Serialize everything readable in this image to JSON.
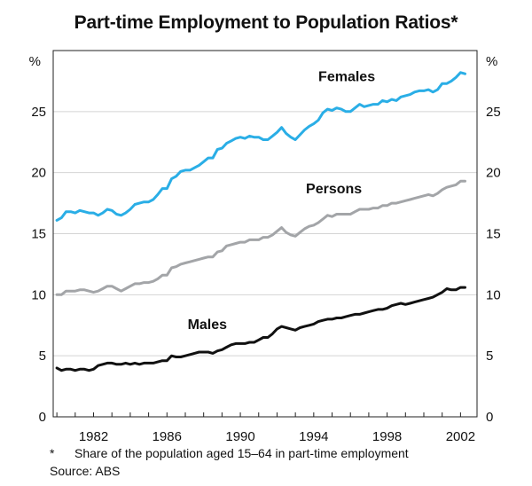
{
  "chart_data": {
    "type": "line",
    "title": "Part-time Employment to Population Ratios*",
    "yunit_left": "%",
    "yunit_right": "%",
    "ylim": [
      0,
      30
    ],
    "yticks": [
      0,
      5,
      10,
      15,
      20,
      25
    ],
    "xlim": [
      1979.8,
      2002.9
    ],
    "xticks": [
      1982,
      1986,
      1990,
      1994,
      1998,
      2002
    ],
    "grid": true,
    "colors": {
      "Females": "#2aaee6",
      "Persons": "#a3a5a8",
      "Males": "#111111"
    },
    "series": [
      {
        "name": "Females",
        "x": [
          1980.0,
          1980.25,
          1980.5,
          1980.75,
          1981.0,
          1981.25,
          1981.5,
          1981.75,
          1982.0,
          1982.25,
          1982.5,
          1982.75,
          1983.0,
          1983.25,
          1983.5,
          1983.75,
          1984.0,
          1984.25,
          1984.5,
          1984.75,
          1985.0,
          1985.25,
          1985.5,
          1985.75,
          1986.0,
          1986.25,
          1986.5,
          1986.75,
          1987.0,
          1987.25,
          1987.5,
          1987.75,
          1988.0,
          1988.25,
          1988.5,
          1988.75,
          1989.0,
          1989.25,
          1989.5,
          1989.75,
          1990.0,
          1990.25,
          1990.5,
          1990.75,
          1991.0,
          1991.25,
          1991.5,
          1991.75,
          1992.0,
          1992.25,
          1992.5,
          1992.75,
          1993.0,
          1993.25,
          1993.5,
          1993.75,
          1994.0,
          1994.25,
          1994.5,
          1994.75,
          1995.0,
          1995.25,
          1995.5,
          1995.75,
          1996.0,
          1996.25,
          1996.5,
          1996.75,
          1997.0,
          1997.25,
          1997.5,
          1997.75,
          1998.0,
          1998.25,
          1998.5,
          1998.75,
          1999.0,
          1999.25,
          1999.5,
          1999.75,
          2000.0,
          2000.25,
          2000.5,
          2000.75,
          2001.0,
          2001.25,
          2001.5,
          2001.75,
          2002.0,
          2002.25
        ],
        "values": [
          16.1,
          16.3,
          16.8,
          16.8,
          16.7,
          16.9,
          16.8,
          16.7,
          16.7,
          16.5,
          16.7,
          17.0,
          16.9,
          16.6,
          16.5,
          16.7,
          17.0,
          17.4,
          17.5,
          17.6,
          17.6,
          17.8,
          18.2,
          18.7,
          18.7,
          19.5,
          19.7,
          20.1,
          20.2,
          20.2,
          20.4,
          20.6,
          20.9,
          21.2,
          21.2,
          21.9,
          22.0,
          22.4,
          22.6,
          22.8,
          22.9,
          22.8,
          23.0,
          22.9,
          22.9,
          22.7,
          22.7,
          23.0,
          23.3,
          23.7,
          23.2,
          22.9,
          22.7,
          23.1,
          23.5,
          23.8,
          24.0,
          24.3,
          24.9,
          25.2,
          25.1,
          25.3,
          25.2,
          25.0,
          25.0,
          25.3,
          25.6,
          25.4,
          25.5,
          25.6,
          25.6,
          25.9,
          25.8,
          26.0,
          25.9,
          26.2,
          26.3,
          26.4,
          26.6,
          26.7,
          26.7,
          26.8,
          26.6,
          26.8,
          27.3,
          27.3,
          27.5,
          27.8,
          28.2,
          28.1
        ]
      },
      {
        "name": "Persons",
        "x": [
          1980.0,
          1980.25,
          1980.5,
          1980.75,
          1981.0,
          1981.25,
          1981.5,
          1981.75,
          1982.0,
          1982.25,
          1982.5,
          1982.75,
          1983.0,
          1983.25,
          1983.5,
          1983.75,
          1984.0,
          1984.25,
          1984.5,
          1984.75,
          1985.0,
          1985.25,
          1985.5,
          1985.75,
          1986.0,
          1986.25,
          1986.5,
          1986.75,
          1987.0,
          1987.25,
          1987.5,
          1987.75,
          1988.0,
          1988.25,
          1988.5,
          1988.75,
          1989.0,
          1989.25,
          1989.5,
          1989.75,
          1990.0,
          1990.25,
          1990.5,
          1990.75,
          1991.0,
          1991.25,
          1991.5,
          1991.75,
          1992.0,
          1992.25,
          1992.5,
          1992.75,
          1993.0,
          1993.25,
          1993.5,
          1993.75,
          1994.0,
          1994.25,
          1994.5,
          1994.75,
          1995.0,
          1995.25,
          1995.5,
          1995.75,
          1996.0,
          1996.25,
          1996.5,
          1996.75,
          1997.0,
          1997.25,
          1997.5,
          1997.75,
          1998.0,
          1998.25,
          1998.5,
          1998.75,
          1999.0,
          1999.25,
          1999.5,
          1999.75,
          2000.0,
          2000.25,
          2000.5,
          2000.75,
          2001.0,
          2001.25,
          2001.5,
          2001.75,
          2002.0,
          2002.25
        ],
        "values": [
          10.0,
          10.0,
          10.3,
          10.3,
          10.3,
          10.4,
          10.4,
          10.3,
          10.2,
          10.3,
          10.5,
          10.7,
          10.7,
          10.5,
          10.3,
          10.5,
          10.7,
          10.9,
          10.9,
          11.0,
          11.0,
          11.1,
          11.3,
          11.6,
          11.6,
          12.2,
          12.3,
          12.5,
          12.6,
          12.7,
          12.8,
          12.9,
          13.0,
          13.1,
          13.1,
          13.5,
          13.6,
          14.0,
          14.1,
          14.2,
          14.3,
          14.3,
          14.5,
          14.5,
          14.5,
          14.7,
          14.7,
          14.9,
          15.2,
          15.5,
          15.1,
          14.9,
          14.8,
          15.1,
          15.4,
          15.6,
          15.7,
          15.9,
          16.2,
          16.5,
          16.4,
          16.6,
          16.6,
          16.6,
          16.6,
          16.8,
          17.0,
          17.0,
          17.0,
          17.1,
          17.1,
          17.3,
          17.3,
          17.5,
          17.5,
          17.6,
          17.7,
          17.8,
          17.9,
          18.0,
          18.1,
          18.2,
          18.1,
          18.3,
          18.6,
          18.8,
          18.9,
          19.0,
          19.3,
          19.3
        ]
      },
      {
        "name": "Males",
        "x": [
          1980.0,
          1980.25,
          1980.5,
          1980.75,
          1981.0,
          1981.25,
          1981.5,
          1981.75,
          1982.0,
          1982.25,
          1982.5,
          1982.75,
          1983.0,
          1983.25,
          1983.5,
          1983.75,
          1984.0,
          1984.25,
          1984.5,
          1984.75,
          1985.0,
          1985.25,
          1985.5,
          1985.75,
          1986.0,
          1986.25,
          1986.5,
          1986.75,
          1987.0,
          1987.25,
          1987.5,
          1987.75,
          1988.0,
          1988.25,
          1988.5,
          1988.75,
          1989.0,
          1989.25,
          1989.5,
          1989.75,
          1990.0,
          1990.25,
          1990.5,
          1990.75,
          1991.0,
          1991.25,
          1991.5,
          1991.75,
          1992.0,
          1992.25,
          1992.5,
          1992.75,
          1993.0,
          1993.25,
          1993.5,
          1993.75,
          1994.0,
          1994.25,
          1994.5,
          1994.75,
          1995.0,
          1995.25,
          1995.5,
          1995.75,
          1996.0,
          1996.25,
          1996.5,
          1996.75,
          1997.0,
          1997.25,
          1997.5,
          1997.75,
          1998.0,
          1998.25,
          1998.5,
          1998.75,
          1999.0,
          1999.25,
          1999.5,
          1999.75,
          2000.0,
          2000.25,
          2000.5,
          2000.75,
          2001.0,
          2001.25,
          2001.5,
          2001.75,
          2002.0,
          2002.25
        ],
        "values": [
          4.0,
          3.8,
          3.9,
          3.9,
          3.8,
          3.9,
          3.9,
          3.8,
          3.9,
          4.2,
          4.3,
          4.4,
          4.4,
          4.3,
          4.3,
          4.4,
          4.3,
          4.4,
          4.3,
          4.4,
          4.4,
          4.4,
          4.5,
          4.6,
          4.6,
          5.0,
          4.9,
          4.9,
          5.0,
          5.1,
          5.2,
          5.3,
          5.3,
          5.3,
          5.2,
          5.4,
          5.5,
          5.7,
          5.9,
          6.0,
          6.0,
          6.0,
          6.1,
          6.1,
          6.3,
          6.5,
          6.5,
          6.8,
          7.2,
          7.4,
          7.3,
          7.2,
          7.1,
          7.3,
          7.4,
          7.5,
          7.6,
          7.8,
          7.9,
          8.0,
          8.0,
          8.1,
          8.1,
          8.2,
          8.3,
          8.4,
          8.4,
          8.5,
          8.6,
          8.7,
          8.8,
          8.8,
          8.9,
          9.1,
          9.2,
          9.3,
          9.2,
          9.3,
          9.4,
          9.5,
          9.6,
          9.7,
          9.8,
          10.0,
          10.2,
          10.5,
          10.4,
          10.4,
          10.6,
          10.6
        ]
      }
    ],
    "annotations": {
      "females_label": "Females",
      "persons_label": "Persons",
      "males_label": "Males"
    }
  },
  "footnote_mark": "*",
  "footnote_text": "Share of the population aged 15–64 in part-time employment",
  "source": "Source: ABS"
}
